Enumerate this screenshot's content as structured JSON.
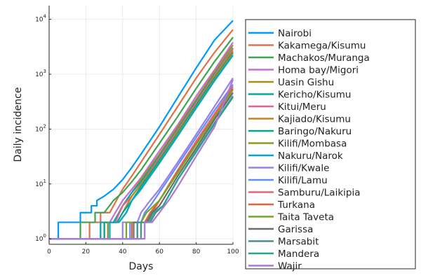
{
  "chart_data": {
    "type": "line",
    "title": "",
    "xlabel": "Days",
    "ylabel": "Daily incidence",
    "xlim": [
      0,
      100
    ],
    "ylim_log10": [
      -0.1,
      4.25
    ],
    "yscale": "log10",
    "grid": true,
    "legend_placement": "outside-right",
    "x_ticks": [
      0,
      20,
      40,
      60,
      80,
      100
    ],
    "x_tick_labels": [
      "0",
      "20",
      "40",
      "60",
      "80",
      "100"
    ],
    "y_ticks": [
      1,
      10,
      100,
      1000,
      10000
    ],
    "y_tick_labels": [
      {
        "base": "10",
        "exp": "0"
      },
      {
        "base": "10",
        "exp": "1"
      },
      {
        "base": "10",
        "exp": "2"
      },
      {
        "base": "10",
        "exp": "3"
      },
      {
        "base": "10",
        "exp": "4"
      }
    ],
    "series": [
      {
        "name": "Nairobi",
        "color": "#009AFA",
        "points": [
          [
            0,
            1
          ],
          [
            5,
            1
          ],
          [
            5,
            2
          ],
          [
            17,
            2
          ],
          [
            17,
            3
          ],
          [
            23,
            3
          ],
          [
            23,
            4
          ],
          [
            26,
            4
          ],
          [
            26,
            5
          ],
          [
            30,
            6
          ],
          [
            35,
            8
          ],
          [
            40,
            12
          ],
          [
            45,
            20
          ],
          [
            50,
            35
          ],
          [
            60,
            110
          ],
          [
            70,
            380
          ],
          [
            80,
            1300
          ],
          [
            90,
            4200
          ],
          [
            100,
            9500
          ]
        ]
      },
      {
        "name": "Kakamega/Kisumu",
        "color": "#E36F47",
        "points": [
          [
            0,
            1
          ],
          [
            22,
            1
          ],
          [
            22,
            2
          ],
          [
            28,
            2
          ],
          [
            28,
            3
          ],
          [
            33,
            3
          ],
          [
            35,
            4
          ],
          [
            40,
            8
          ],
          [
            45,
            14
          ],
          [
            50,
            25
          ],
          [
            60,
            80
          ],
          [
            70,
            260
          ],
          [
            80,
            850
          ],
          [
            90,
            2500
          ],
          [
            100,
            6500
          ]
        ]
      },
      {
        "name": "Machakos/Muranga",
        "color": "#3EA44E",
        "points": [
          [
            0,
            1
          ],
          [
            17,
            1
          ],
          [
            17,
            2
          ],
          [
            25,
            2
          ],
          [
            25,
            3
          ],
          [
            30,
            3
          ],
          [
            35,
            5
          ],
          [
            40,
            7
          ],
          [
            45,
            11
          ],
          [
            50,
            18
          ],
          [
            60,
            55
          ],
          [
            70,
            170
          ],
          [
            80,
            550
          ],
          [
            90,
            1700
          ],
          [
            100,
            4700
          ]
        ]
      },
      {
        "name": "Homa bay/Migori",
        "color": "#C371D2",
        "points": [
          [
            0,
            1
          ],
          [
            28,
            1
          ],
          [
            28,
            2
          ],
          [
            33,
            2
          ],
          [
            36,
            3
          ],
          [
            40,
            5
          ],
          [
            45,
            8
          ],
          [
            50,
            13
          ],
          [
            60,
            40
          ],
          [
            70,
            120
          ],
          [
            80,
            400
          ],
          [
            90,
            1200
          ],
          [
            100,
            3800
          ]
        ]
      },
      {
        "name": "Uasin Gishu",
        "color": "#AC8D18",
        "points": [
          [
            0,
            1
          ],
          [
            30,
            1
          ],
          [
            30,
            2
          ],
          [
            35,
            2
          ],
          [
            38,
            3
          ],
          [
            40,
            4
          ],
          [
            45,
            7
          ],
          [
            50,
            12
          ],
          [
            60,
            35
          ],
          [
            70,
            110
          ],
          [
            80,
            350
          ],
          [
            90,
            1100
          ],
          [
            100,
            3400
          ]
        ]
      },
      {
        "name": "Kericho/Kisumu",
        "color": "#00A9AD",
        "points": [
          [
            0,
            1
          ],
          [
            28,
            1
          ],
          [
            28,
            2
          ],
          [
            35,
            2
          ],
          [
            38,
            3
          ],
          [
            40,
            4
          ],
          [
            45,
            7
          ],
          [
            50,
            11
          ],
          [
            60,
            32
          ],
          [
            70,
            100
          ],
          [
            80,
            320
          ],
          [
            90,
            1000
          ],
          [
            100,
            3000
          ]
        ]
      },
      {
        "name": "Kitui/Meru",
        "color": "#ED5E93",
        "points": [
          [
            0,
            1
          ],
          [
            30,
            1
          ],
          [
            30,
            2
          ],
          [
            36,
            2
          ],
          [
            40,
            4
          ],
          [
            45,
            6
          ],
          [
            50,
            10
          ],
          [
            60,
            30
          ],
          [
            70,
            95
          ],
          [
            80,
            300
          ],
          [
            90,
            950
          ],
          [
            100,
            2900
          ]
        ]
      },
      {
        "name": "Kajiado/Kisumu",
        "color": "#C68225",
        "points": [
          [
            0,
            1
          ],
          [
            32,
            1
          ],
          [
            32,
            2
          ],
          [
            37,
            2
          ],
          [
            40,
            3
          ],
          [
            45,
            6
          ],
          [
            50,
            10
          ],
          [
            60,
            28
          ],
          [
            70,
            90
          ],
          [
            80,
            280
          ],
          [
            90,
            900
          ],
          [
            100,
            2700
          ]
        ]
      },
      {
        "name": "Baringo/Nakuru",
        "color": "#00A98D",
        "points": [
          [
            0,
            1
          ],
          [
            30,
            1
          ],
          [
            30,
            2
          ],
          [
            37,
            2
          ],
          [
            40,
            3
          ],
          [
            45,
            5
          ],
          [
            50,
            9
          ],
          [
            60,
            27
          ],
          [
            70,
            85
          ],
          [
            80,
            270
          ],
          [
            90,
            850
          ],
          [
            100,
            2500
          ]
        ]
      },
      {
        "name": "Kilifi/Mombasa",
        "color": "#8E971E",
        "points": [
          [
            0,
            1
          ],
          [
            32,
            1
          ],
          [
            32,
            2
          ],
          [
            38,
            2
          ],
          [
            42,
            3
          ],
          [
            45,
            5
          ],
          [
            50,
            8
          ],
          [
            60,
            25
          ],
          [
            70,
            80
          ],
          [
            80,
            250
          ],
          [
            90,
            800
          ],
          [
            100,
            2400
          ]
        ]
      },
      {
        "name": "Nakuru/Narok",
        "color": "#00A8CB",
        "points": [
          [
            0,
            1
          ],
          [
            33,
            1
          ],
          [
            33,
            2
          ],
          [
            38,
            2
          ],
          [
            42,
            3
          ],
          [
            45,
            5
          ],
          [
            50,
            8
          ],
          [
            60,
            24
          ],
          [
            70,
            75
          ],
          [
            80,
            240
          ],
          [
            90,
            760
          ],
          [
            100,
            2200
          ]
        ]
      },
      {
        "name": "Kilifi/Kwale",
        "color": "#9B7FE9",
        "points": [
          [
            0,
            1
          ],
          [
            40,
            1
          ],
          [
            40,
            2
          ],
          [
            48,
            2
          ],
          [
            50,
            3
          ],
          [
            55,
            5
          ],
          [
            60,
            8
          ],
          [
            70,
            25
          ],
          [
            80,
            80
          ],
          [
            90,
            260
          ],
          [
            100,
            850
          ]
        ]
      },
      {
        "name": "Kilifi/Lamu",
        "color": "#618DF6",
        "points": [
          [
            0,
            1
          ],
          [
            44,
            1
          ],
          [
            44,
            2
          ],
          [
            50,
            2
          ],
          [
            52,
            3
          ],
          [
            55,
            4
          ],
          [
            60,
            7
          ],
          [
            70,
            22
          ],
          [
            80,
            70
          ],
          [
            90,
            220
          ],
          [
            100,
            650
          ]
        ]
      },
      {
        "name": "Samburu/Laikipia",
        "color": "#F06173",
        "points": [
          [
            0,
            1
          ],
          [
            48,
            1
          ],
          [
            48,
            2
          ],
          [
            53,
            2
          ],
          [
            56,
            3
          ],
          [
            60,
            5
          ],
          [
            70,
            18
          ],
          [
            80,
            60
          ],
          [
            90,
            190
          ],
          [
            100,
            600
          ]
        ]
      },
      {
        "name": "Turkana",
        "color": "#DD6435",
        "points": [
          [
            0,
            1
          ],
          [
            45,
            1
          ],
          [
            45,
            2
          ],
          [
            52,
            2
          ],
          [
            55,
            3
          ],
          [
            60,
            5
          ],
          [
            70,
            17
          ],
          [
            80,
            55
          ],
          [
            90,
            170
          ],
          [
            100,
            550
          ]
        ]
      },
      {
        "name": "Taita Taveta",
        "color": "#75A725",
        "points": [
          [
            0,
            1
          ],
          [
            42,
            1
          ],
          [
            42,
            2
          ],
          [
            50,
            2
          ],
          [
            53,
            3
          ],
          [
            60,
            5
          ],
          [
            70,
            16
          ],
          [
            80,
            52
          ],
          [
            90,
            165
          ],
          [
            100,
            520
          ]
        ]
      },
      {
        "name": "Garissa",
        "color": "#6B6B6B",
        "points": [
          [
            0,
            1
          ],
          [
            46,
            1
          ],
          [
            46,
            2
          ],
          [
            53,
            2
          ],
          [
            56,
            3
          ],
          [
            60,
            4
          ],
          [
            70,
            14
          ],
          [
            80,
            45
          ],
          [
            90,
            150
          ],
          [
            100,
            460
          ]
        ]
      },
      {
        "name": "Marsabit",
        "color": "#4C8E8A",
        "points": [
          [
            0,
            1
          ],
          [
            50,
            1
          ],
          [
            50,
            2
          ],
          [
            55,
            2
          ],
          [
            58,
            3
          ],
          [
            62,
            4
          ],
          [
            70,
            12
          ],
          [
            80,
            40
          ],
          [
            90,
            130
          ],
          [
            100,
            400
          ]
        ]
      },
      {
        "name": "Mandera",
        "color": "#26A490",
        "points": [
          [
            0,
            1
          ],
          [
            48,
            1
          ],
          [
            48,
            2
          ],
          [
            54,
            2
          ],
          [
            57,
            3
          ],
          [
            62,
            4
          ],
          [
            70,
            12
          ],
          [
            80,
            38
          ],
          [
            90,
            125
          ],
          [
            100,
            380
          ]
        ]
      },
      {
        "name": "Wajir",
        "color": "#AA79D6",
        "points": [
          [
            0,
            1
          ],
          [
            52,
            1
          ],
          [
            52,
            2
          ],
          [
            56,
            2
          ],
          [
            60,
            3
          ],
          [
            65,
            5
          ],
          [
            70,
            9
          ],
          [
            80,
            32
          ],
          [
            90,
            110
          ],
          [
            100,
            800
          ]
        ]
      }
    ]
  }
}
